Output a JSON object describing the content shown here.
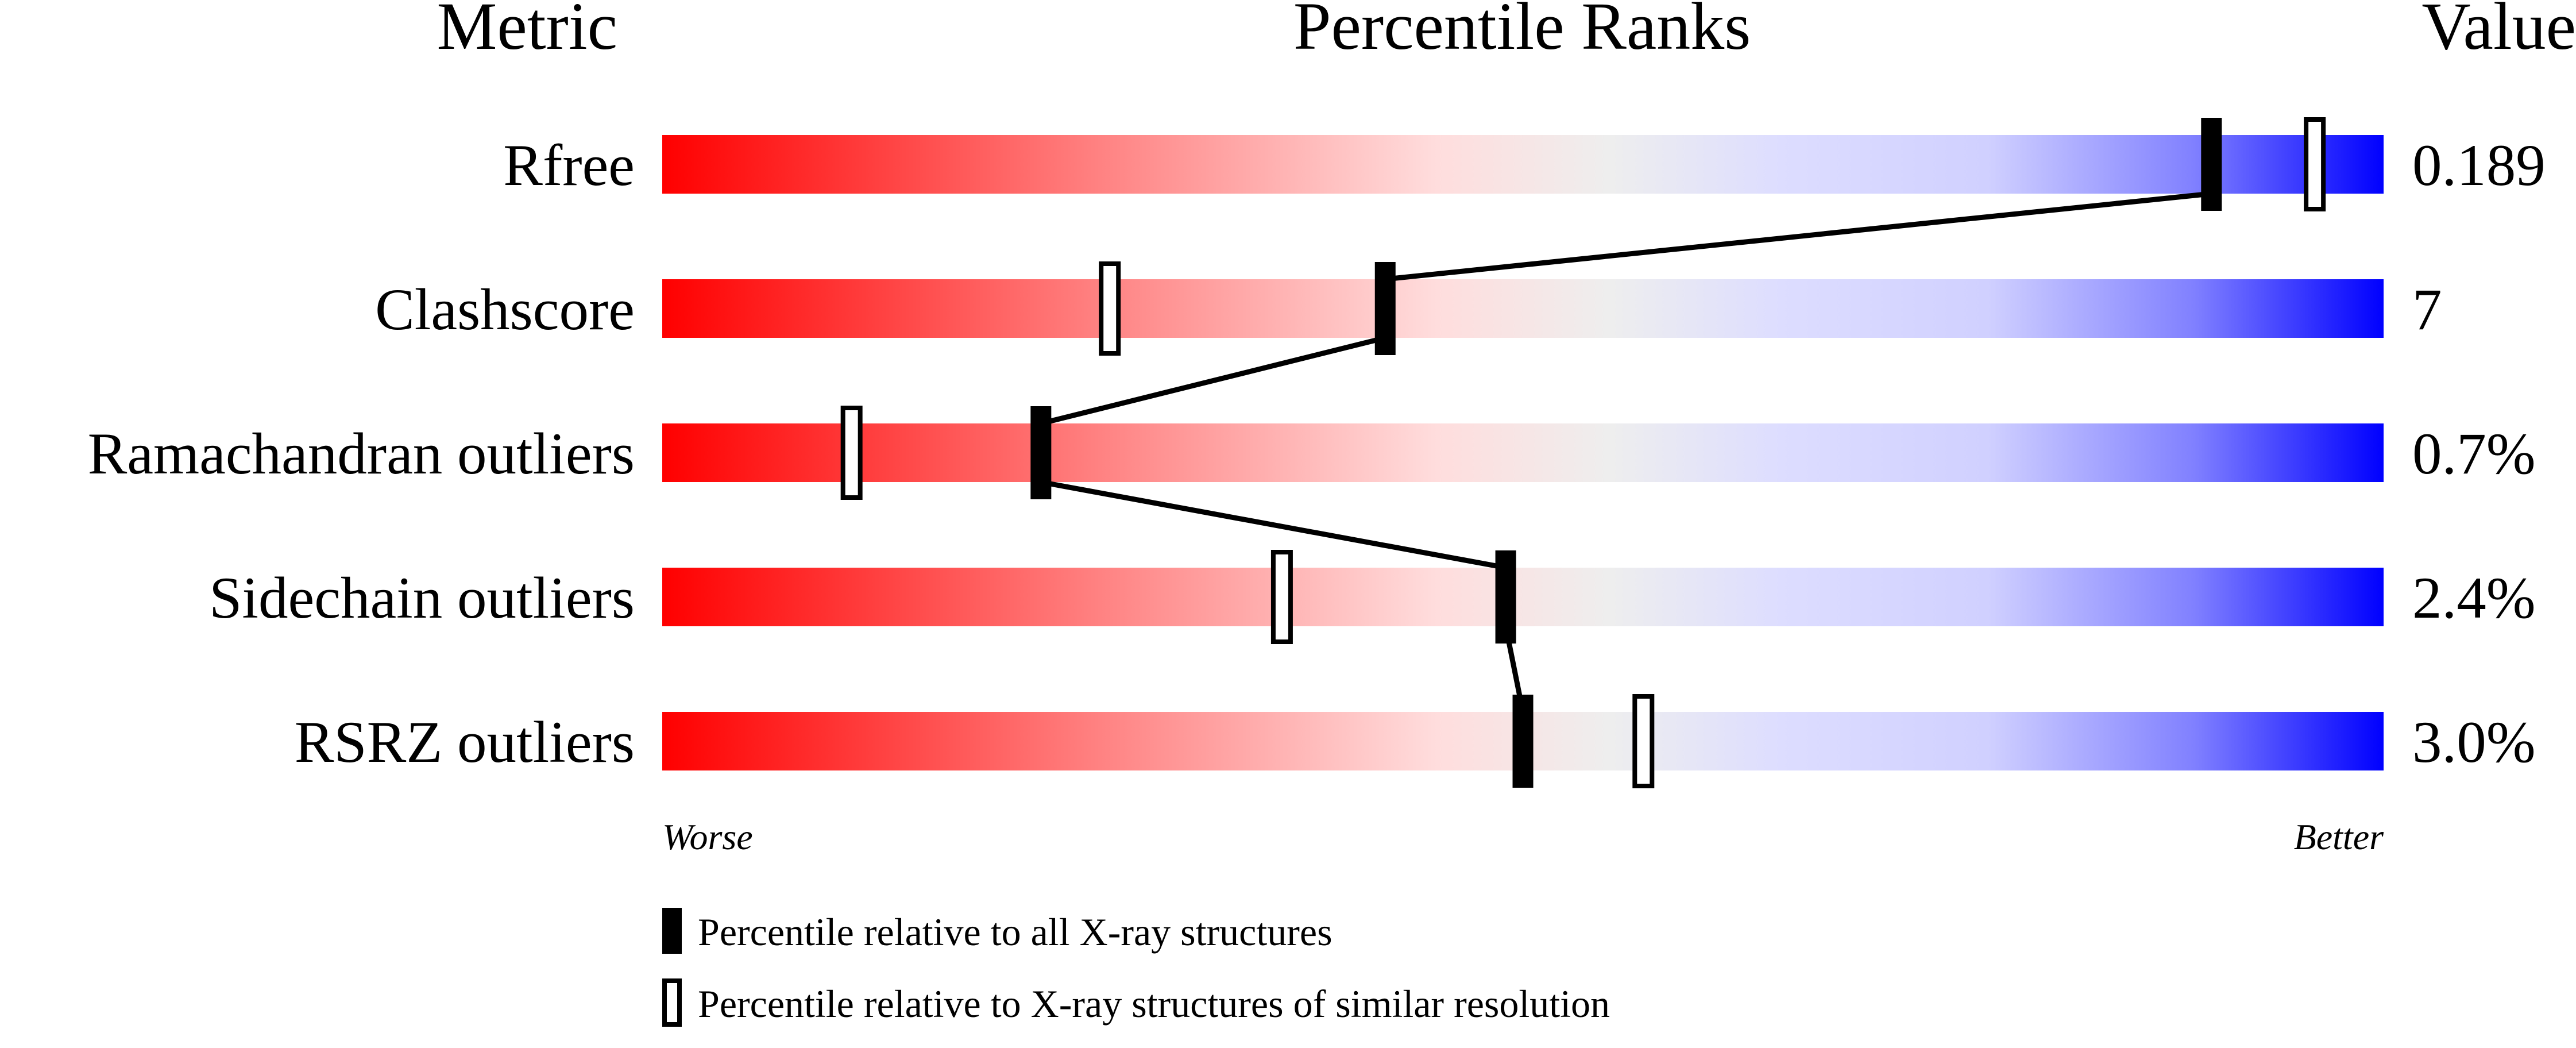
{
  "chart_data": {
    "type": "percentile-slider",
    "headers": {
      "metric": "Metric",
      "ranks": "Percentile Ranks",
      "value": "Value"
    },
    "xlim": [
      0,
      100
    ],
    "scale_labels": {
      "left": "Worse",
      "right": "Better"
    },
    "gradient_colors": [
      "#ff0000",
      "#ff8080",
      "#ffdddd",
      "#eeeeee",
      "#ddddff",
      "#d0d0ff",
      "#8080ff",
      "#0000ff"
    ],
    "rows": [
      {
        "metric": "Rfree",
        "value": "0.189",
        "percentile_all": 90,
        "percentile_similar": 96
      },
      {
        "metric": "Clashscore",
        "value": "7",
        "percentile_all": 42,
        "percentile_similar": 26
      },
      {
        "metric": "Ramachandran outliers",
        "value": "0.7%",
        "percentile_all": 22,
        "percentile_similar": 11
      },
      {
        "metric": "Sidechain outliers",
        "value": "2.4%",
        "percentile_all": 49,
        "percentile_similar": 36
      },
      {
        "metric": "RSRZ outliers",
        "value": "3.0%",
        "percentile_all": 50,
        "percentile_similar": 57
      }
    ],
    "legend": {
      "filled": "Percentile relative to all X-ray structures",
      "open": "Percentile relative to X-ray structures of similar resolution"
    }
  }
}
